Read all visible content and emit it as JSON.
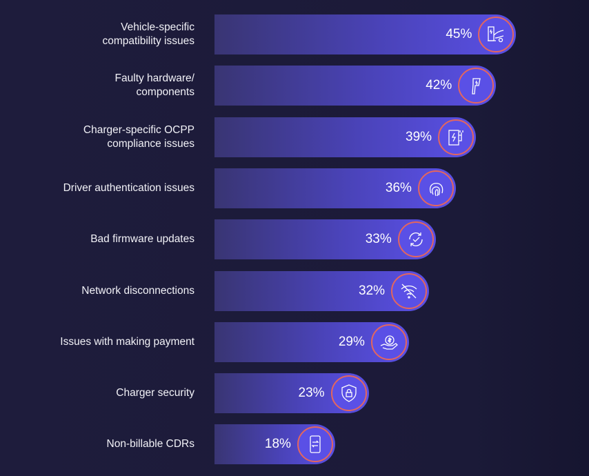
{
  "chart_data": {
    "type": "bar",
    "orientation": "horizontal",
    "title": "",
    "xlabel": "",
    "ylabel": "",
    "xlim": [
      0,
      45
    ],
    "unit": "%",
    "categories": [
      "Vehicle-specific compatibility issues",
      "Faulty hardware/ components",
      "Charger-specific OCPP compliance issues",
      "Driver authentication issues",
      "Bad firmware updates",
      "Network disconnections",
      "Issues with making payment",
      "Charger security",
      "Non-billable CDRs"
    ],
    "label_lines": [
      [
        "Vehicle-specific",
        "compatibility issues"
      ],
      [
        "Faulty hardware/",
        "components"
      ],
      [
        "Charger-specific OCPP",
        "compliance issues"
      ],
      [
        "Driver authentication issues"
      ],
      [
        "Bad firmware updates"
      ],
      [
        "Network disconnections"
      ],
      [
        "Issues with making payment"
      ],
      [
        "Charger security"
      ],
      [
        "Non-billable CDRs"
      ]
    ],
    "values": [
      45,
      42,
      39,
      36,
      33,
      32,
      29,
      23,
      18
    ],
    "value_labels": [
      "45%",
      "42%",
      "39%",
      "36%",
      "33%",
      "32%",
      "29%",
      "23%",
      "18%"
    ],
    "icons": [
      "ev-charging-car-icon",
      "charging-plug-icon",
      "charger-station-icon",
      "fingerprint-icon",
      "refresh-check-icon",
      "wifi-off-icon",
      "payment-hand-icon",
      "shield-lock-icon",
      "mobile-transfer-icon"
    ]
  },
  "colors": {
    "background": "#1c1a3a",
    "bar_start": "#393573",
    "bar_end": "#5a50e6",
    "icon_ring": "#e4665e",
    "text": "#f2f2f7"
  }
}
